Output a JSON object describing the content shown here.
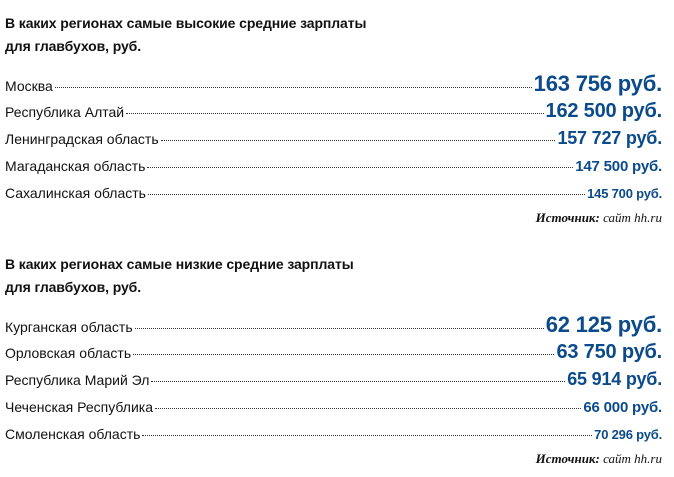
{
  "high": {
    "heading_line1": "В каких регионах самые высокие средние зарплаты",
    "heading_line2": "для главбухов, руб.",
    "rows": [
      {
        "region": "Москва",
        "value": "163 756 руб."
      },
      {
        "region": "Республика Алтай",
        "value": "162 500 руб."
      },
      {
        "region": "Ленинградская область",
        "value": "157 727 руб."
      },
      {
        "region": "Магаданская область",
        "value": "147 500 руб."
      },
      {
        "region": "Сахалинская область",
        "value": "145 700 руб."
      }
    ],
    "source_label": "Источник:",
    "source_value": "сайт hh.ru"
  },
  "low": {
    "heading_line1": "В каких регионах самые низкие средние зарплаты",
    "heading_line2": "для главбухов, руб.",
    "rows": [
      {
        "region": "Курганская область",
        "value": "62 125 руб."
      },
      {
        "region": "Орловская область",
        "value": "63 750 руб."
      },
      {
        "region": "Республика Марий Эл",
        "value": "65 914 руб."
      },
      {
        "region": "Чеченская Республика",
        "value": "66 000 руб."
      },
      {
        "region": "Смоленская область",
        "value": "70 296 руб."
      }
    ],
    "source_label": "Источник:",
    "source_value": "сайт hh.ru"
  }
}
